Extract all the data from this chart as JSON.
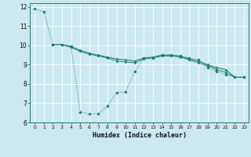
{
  "title": "",
  "xlabel": "Humidex (Indice chaleur)",
  "bg_color": "#cce9f0",
  "line_color": "#1a7a6e",
  "grid_color": "#ffffff",
  "xlim": [
    -0.5,
    23.5
  ],
  "ylim": [
    6,
    12.2
  ],
  "xticks": [
    0,
    1,
    2,
    3,
    4,
    5,
    6,
    7,
    8,
    9,
    10,
    11,
    12,
    13,
    14,
    15,
    16,
    17,
    18,
    19,
    20,
    21,
    22,
    23
  ],
  "yticks": [
    6,
    7,
    8,
    9,
    10,
    11,
    12
  ],
  "line1_x": [
    0,
    1,
    2,
    3,
    4,
    5,
    6,
    7,
    8,
    9,
    10,
    11,
    12,
    13,
    14,
    15,
    16,
    17,
    18,
    19,
    20,
    21,
    22,
    23
  ],
  "line1_y": [
    11.9,
    11.75,
    10.05,
    10.05,
    9.95,
    6.55,
    6.45,
    6.45,
    6.85,
    7.55,
    7.6,
    8.65,
    9.35,
    9.35,
    9.5,
    9.5,
    9.45,
    9.35,
    9.25,
    8.85,
    8.65,
    8.5,
    8.35,
    8.35
  ],
  "line2_x": [
    2,
    3,
    4,
    5,
    6,
    7,
    8,
    9,
    10,
    11,
    12,
    13,
    14,
    15,
    16,
    17,
    18,
    19,
    20,
    21,
    22,
    23
  ],
  "line2_y": [
    10.05,
    10.05,
    9.95,
    9.75,
    9.6,
    9.5,
    9.4,
    9.3,
    9.25,
    9.2,
    9.35,
    9.4,
    9.5,
    9.5,
    9.45,
    9.3,
    9.2,
    9.0,
    8.85,
    8.75,
    8.35,
    8.35
  ],
  "line3_x": [
    2,
    3,
    4,
    5,
    6,
    7,
    8,
    9,
    10,
    11,
    12,
    13,
    14,
    15,
    16,
    17,
    18,
    19,
    20,
    21,
    22,
    23
  ],
  "line3_y": [
    10.05,
    10.05,
    9.9,
    9.7,
    9.55,
    9.45,
    9.35,
    9.2,
    9.15,
    9.1,
    9.3,
    9.35,
    9.45,
    9.45,
    9.4,
    9.25,
    9.1,
    8.95,
    8.75,
    8.6,
    8.35,
    8.35
  ]
}
